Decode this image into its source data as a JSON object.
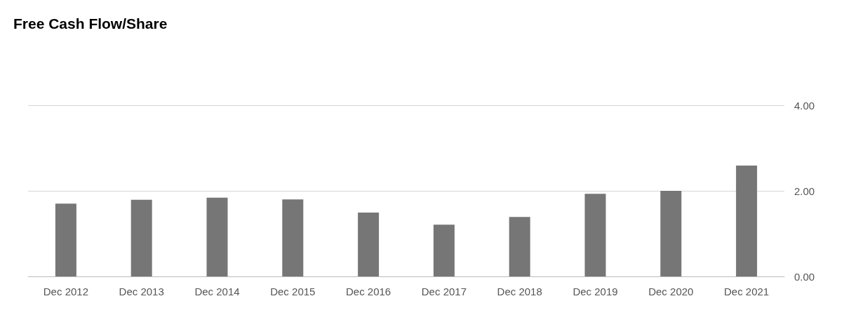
{
  "chart_data": {
    "type": "bar",
    "title": "Free Cash Flow/Share",
    "categories": [
      "Dec 2012",
      "Dec 2013",
      "Dec 2014",
      "Dec 2015",
      "Dec 2016",
      "Dec 2017",
      "Dec 2018",
      "Dec 2019",
      "Dec 2020",
      "Dec 2021"
    ],
    "values": [
      1.7,
      1.79,
      1.84,
      1.8,
      1.49,
      1.21,
      1.39,
      1.93,
      2.0,
      2.59
    ],
    "color": "#767676",
    "ylim": [
      0,
      4
    ],
    "yticks": [
      {
        "value": 0,
        "label": "0.00"
      },
      {
        "value": 2,
        "label": "2.00"
      },
      {
        "value": 4,
        "label": "4.00"
      }
    ],
    "grid": "y"
  }
}
